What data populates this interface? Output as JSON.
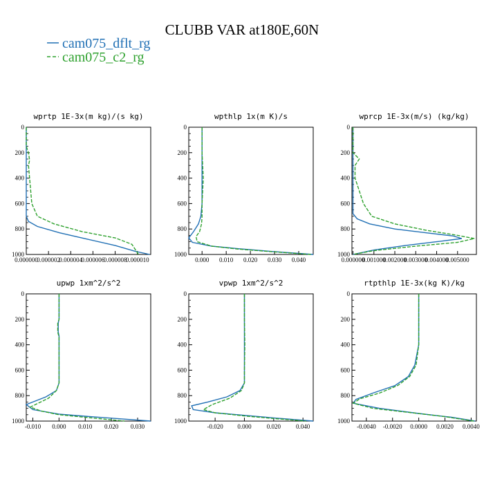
{
  "figure": {
    "title": "CLUBB VAR at180E,60N",
    "legend": [
      {
        "label": "cam075_dflt_rg",
        "color": "#1f6fb4",
        "dash": "solid"
      },
      {
        "label": "cam075_c2_rg",
        "color": "#2ca02c",
        "dash": "dashed"
      }
    ]
  },
  "chart_data": [
    {
      "type": "line",
      "title": "wprtp  1E-3x(m kg)/(s kg)",
      "xlim": [
        0.0,
        1.12e-05
      ],
      "ylim": [
        1000,
        0
      ],
      "xticks": [
        0.0,
        2e-06,
        4e-06,
        6e-06,
        8e-06,
        1e-05
      ],
      "xtick_labels": [
        "0.000000",
        "0.000002",
        "0.000004",
        "0.000006",
        "0.000008",
        "0.000010"
      ],
      "yticks": [
        0,
        200,
        400,
        600,
        800,
        1000
      ],
      "series": [
        {
          "name": "cam075_dflt_rg",
          "points": [
            [
              0.0,
              0
            ],
            [
              0.0,
              100
            ],
            [
              0.0,
              200
            ],
            [
              0.0,
              300
            ],
            [
              0.0,
              400
            ],
            [
              0.0,
              500
            ],
            [
              0.0,
              600
            ],
            [
              0.0,
              700
            ],
            [
              2e-07,
              740
            ],
            [
              1e-06,
              780
            ],
            [
              3e-06,
              830
            ],
            [
              5.5e-06,
              880
            ],
            [
              8e-06,
              930
            ],
            [
              9.8e-06,
              975
            ],
            [
              1.11e-05,
              1000
            ]
          ]
        },
        {
          "name": "cam075_c2_rg",
          "points": [
            [
              0.0,
              0
            ],
            [
              0.0,
              150
            ],
            [
              2e-07,
              200
            ],
            [
              3e-07,
              260
            ],
            [
              2e-07,
              300
            ],
            [
              3e-07,
              400
            ],
            [
              4e-07,
              500
            ],
            [
              5e-07,
              600
            ],
            [
              1e-06,
              700
            ],
            [
              2.5e-06,
              760
            ],
            [
              5e-06,
              820
            ],
            [
              8e-06,
              870
            ],
            [
              9.5e-06,
              920
            ],
            [
              9.8e-06,
              960
            ],
            [
              1.01e-05,
              1000
            ]
          ]
        }
      ]
    },
    {
      "type": "line",
      "title": "wpthlp  1x(m K)/s",
      "xlim": [
        -0.0055,
        0.046
      ],
      "ylim": [
        1000,
        0
      ],
      "xticks": [
        0.0,
        0.01,
        0.02,
        0.03,
        0.04
      ],
      "xtick_labels": [
        "0.000",
        "0.010",
        "0.020",
        "0.030",
        "0.040"
      ],
      "yticks": [
        0,
        200,
        400,
        600,
        800,
        1000
      ],
      "series": [
        {
          "name": "cam075_dflt_rg",
          "points": [
            [
              0.0,
              0
            ],
            [
              0.0,
              200
            ],
            [
              0.0,
              400
            ],
            [
              0.0,
              600
            ],
            [
              -0.0005,
              700
            ],
            [
              -0.0015,
              760
            ],
            [
              -0.0035,
              820
            ],
            [
              -0.0055,
              870
            ],
            [
              -0.004,
              905
            ],
            [
              0.004,
              935
            ],
            [
              0.015,
              955
            ],
            [
              0.028,
              975
            ],
            [
              0.046,
              1000
            ]
          ]
        },
        {
          "name": "cam075_c2_rg",
          "points": [
            [
              0.0,
              0
            ],
            [
              0.0,
              200
            ],
            [
              0.0005,
              400
            ],
            [
              0.0,
              600
            ],
            [
              0.0,
              700
            ],
            [
              -0.0002,
              760
            ],
            [
              -0.001,
              820
            ],
            [
              -0.0025,
              860
            ],
            [
              -0.002,
              900
            ],
            [
              0.004,
              935
            ],
            [
              0.015,
              958
            ],
            [
              0.03,
              980
            ],
            [
              0.045,
              1000
            ]
          ]
        }
      ]
    },
    {
      "type": "line",
      "title": "wprcp  1E-3x(m/s) (kg/kg)",
      "xlim": [
        -5e-05,
        0.0059
      ],
      "ylim": [
        1000,
        0
      ],
      "xticks": [
        0.0,
        0.001,
        0.002,
        0.003,
        0.004,
        0.005
      ],
      "xtick_labels": [
        "0.000000",
        "0.001000",
        "0.002000",
        "0.003000",
        "0.004000",
        "0.005000"
      ],
      "yticks": [
        0,
        200,
        400,
        600,
        800,
        1000
      ],
      "series": [
        {
          "name": "cam075_dflt_rg",
          "points": [
            [
              0.0,
              0
            ],
            [
              0.0,
              200
            ],
            [
              0.0,
              400
            ],
            [
              0.0,
              600
            ],
            [
              0.0,
              680
            ],
            [
              0.0002,
              720
            ],
            [
              0.0008,
              760
            ],
            [
              0.002,
              800
            ],
            [
              0.0035,
              830
            ],
            [
              0.0048,
              855
            ],
            [
              0.0052,
              875
            ],
            [
              0.004,
              900
            ],
            [
              0.0025,
              930
            ],
            [
              0.001,
              965
            ],
            [
              0.0,
              1000
            ]
          ]
        },
        {
          "name": "cam075_c2_rg",
          "points": [
            [
              0.0,
              0
            ],
            [
              0.0,
              200
            ],
            [
              0.0003,
              250
            ],
            [
              0.0001,
              300
            ],
            [
              0.0001,
              400
            ],
            [
              0.0003,
              500
            ],
            [
              0.0005,
              600
            ],
            [
              0.0009,
              700
            ],
            [
              0.002,
              760
            ],
            [
              0.0035,
              810
            ],
            [
              0.005,
              850
            ],
            [
              0.0058,
              875
            ],
            [
              0.005,
              905
            ],
            [
              0.003,
              935
            ],
            [
              0.001,
              970
            ],
            [
              0.0,
              1000
            ]
          ]
        }
      ]
    },
    {
      "type": "line",
      "title": "upwp  1xm^2/s^2",
      "xlim": [
        -0.0125,
        0.035
      ],
      "ylim": [
        1000,
        0
      ],
      "xticks": [
        -0.01,
        0.0,
        0.01,
        0.02,
        0.03
      ],
      "xtick_labels": [
        "-0.010",
        "0.000",
        "0.010",
        "0.020",
        "0.030"
      ],
      "yticks": [
        0,
        200,
        400,
        600,
        800,
        1000
      ],
      "series": [
        {
          "name": "cam075_dflt_rg",
          "points": [
            [
              0.0,
              0
            ],
            [
              0.0,
              200
            ],
            [
              -0.0003,
              230
            ],
            [
              -0.0003,
              300
            ],
            [
              0.0,
              330
            ],
            [
              0.0,
              700
            ],
            [
              -0.001,
              760
            ],
            [
              -0.005,
              810
            ],
            [
              -0.01,
              850
            ],
            [
              -0.0125,
              870
            ],
            [
              -0.01,
              910
            ],
            [
              0.0,
              945
            ],
            [
              0.012,
              965
            ],
            [
              0.025,
              985
            ],
            [
              0.035,
              1000
            ]
          ]
        },
        {
          "name": "cam075_c2_rg",
          "points": [
            [
              0.0,
              0
            ],
            [
              0.0,
              200
            ],
            [
              -0.0005,
              230
            ],
            [
              -0.0005,
              300
            ],
            [
              0.0,
              340
            ],
            [
              0.0,
              700
            ],
            [
              -0.001,
              760
            ],
            [
              -0.004,
              820
            ],
            [
              -0.008,
              860
            ],
            [
              -0.011,
              890
            ],
            [
              -0.007,
              920
            ],
            [
              0.0,
              950
            ],
            [
              0.01,
              970
            ],
            [
              0.02,
              990
            ],
            [
              0.025,
              1000
            ]
          ]
        }
      ]
    },
    {
      "type": "line",
      "title": "vpwp  1xm^2/s^2",
      "xlim": [
        -0.038,
        0.047
      ],
      "ylim": [
        1000,
        0
      ],
      "xticks": [
        -0.02,
        0.0,
        0.02,
        0.04
      ],
      "xtick_labels": [
        "-0.020",
        "0.000",
        "0.020",
        "0.040"
      ],
      "yticks": [
        0,
        200,
        400,
        600,
        800,
        1000
      ],
      "series": [
        {
          "name": "cam075_dflt_rg",
          "points": [
            [
              0.0,
              0
            ],
            [
              0.0,
              200
            ],
            [
              0.0,
              400
            ],
            [
              0.0,
              600
            ],
            [
              0.0,
              700
            ],
            [
              -0.003,
              760
            ],
            [
              -0.012,
              810
            ],
            [
              -0.025,
              850
            ],
            [
              -0.036,
              880
            ],
            [
              -0.035,
              910
            ],
            [
              -0.02,
              935
            ],
            [
              0.0,
              955
            ],
            [
              0.02,
              975
            ],
            [
              0.047,
              1000
            ]
          ]
        },
        {
          "name": "cam075_c2_rg",
          "points": [
            [
              0.0,
              0
            ],
            [
              0.0,
              200
            ],
            [
              0.0003,
              400
            ],
            [
              0.0,
              600
            ],
            [
              0.0,
              700
            ],
            [
              -0.002,
              760
            ],
            [
              -0.01,
              820
            ],
            [
              -0.022,
              870
            ],
            [
              -0.028,
              910
            ],
            [
              -0.02,
              935
            ],
            [
              0.0,
              960
            ],
            [
              0.02,
              980
            ],
            [
              0.042,
              1000
            ]
          ]
        }
      ]
    },
    {
      "type": "line",
      "title": "rtpthlp  1E-3x(kg K)/kg",
      "xlim": [
        -0.0051,
        0.0044
      ],
      "ylim": [
        1000,
        0
      ],
      "xticks": [
        -0.004,
        -0.002,
        0.0,
        0.002,
        0.004
      ],
      "xtick_labels": [
        "-0.0040",
        "-0.0020",
        "0.0000",
        "0.0020",
        "0.0040"
      ],
      "yticks": [
        0,
        200,
        400,
        600,
        800,
        1000
      ],
      "series": [
        {
          "name": "cam075_dflt_rg",
          "points": [
            [
              0.0,
              0
            ],
            [
              0.0,
              200
            ],
            [
              0.0,
              400
            ],
            [
              -0.0003,
              560
            ],
            [
              -0.0008,
              650
            ],
            [
              -0.0018,
              720
            ],
            [
              -0.0035,
              780
            ],
            [
              -0.0048,
              830
            ],
            [
              -0.005,
              860
            ],
            [
              -0.003,
              900
            ],
            [
              0.0,
              940
            ],
            [
              0.0025,
              970
            ],
            [
              0.0043,
              1000
            ]
          ]
        },
        {
          "name": "cam075_c2_rg",
          "points": [
            [
              0.0,
              0
            ],
            [
              0.0,
              200
            ],
            [
              0.0,
              400
            ],
            [
              -0.0002,
              560
            ],
            [
              -0.0007,
              650
            ],
            [
              -0.0016,
              720
            ],
            [
              -0.003,
              780
            ],
            [
              -0.0045,
              825
            ],
            [
              -0.005,
              860
            ],
            [
              -0.0035,
              900
            ],
            [
              -0.0005,
              935
            ],
            [
              0.002,
              965
            ],
            [
              0.0042,
              1000
            ]
          ]
        }
      ]
    }
  ]
}
